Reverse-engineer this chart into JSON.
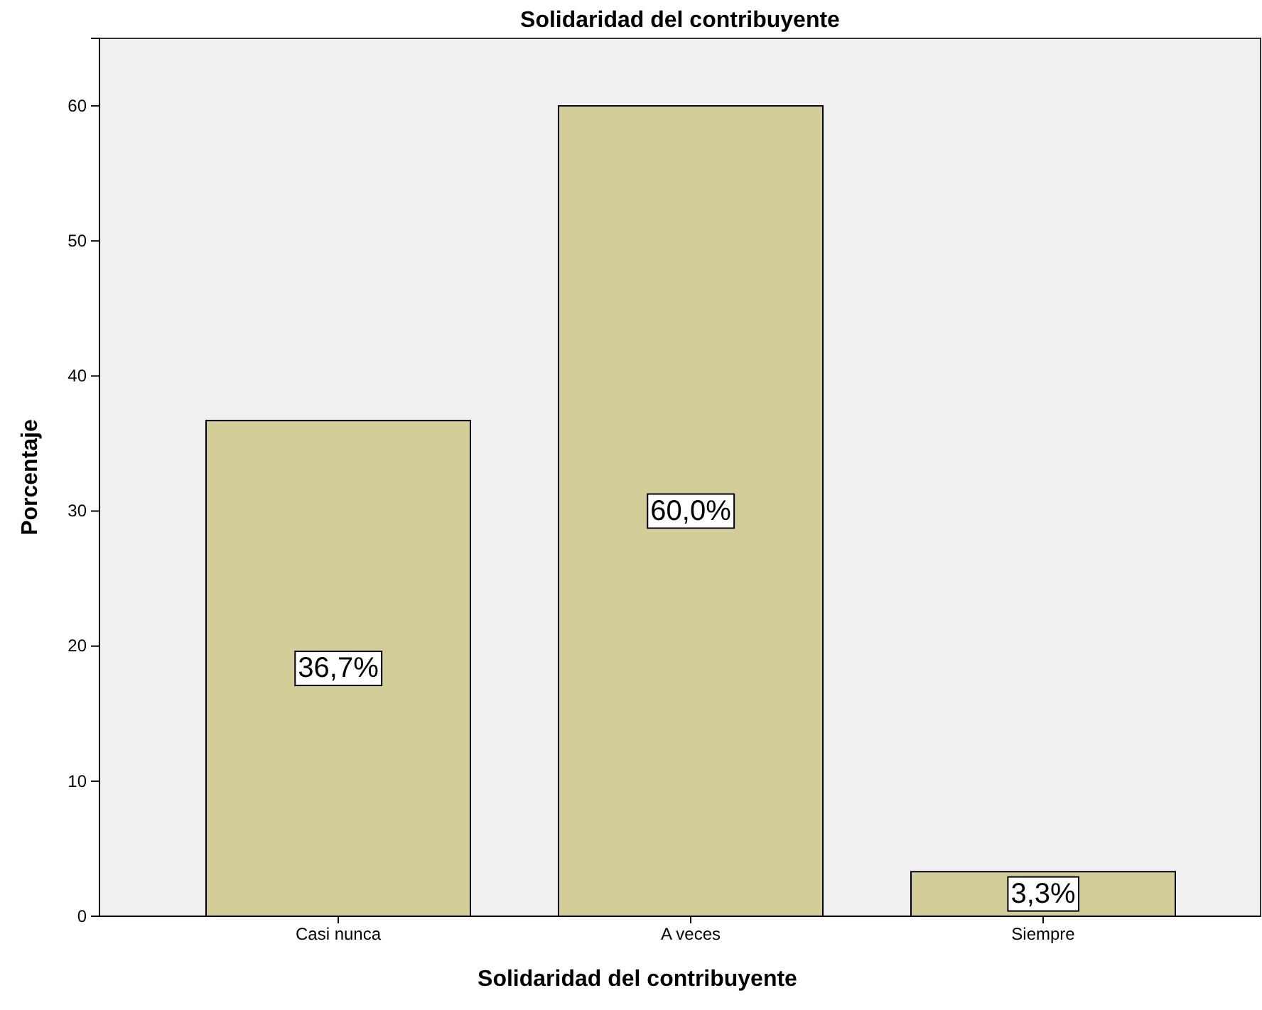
{
  "chart_data": {
    "type": "bar",
    "title": "Solidaridad del contribuyente",
    "xlabel": "Solidaridad del contribuyente",
    "ylabel": "Porcentaje",
    "categories": [
      "Casi nunca",
      "A veces",
      "Siempre"
    ],
    "values": [
      36.7,
      60.0,
      3.3
    ],
    "value_labels": [
      "36,7%",
      "60,0%",
      "3,3%"
    ],
    "color": "#d3ce98",
    "ylim": [
      0,
      65
    ],
    "yticks": [
      0,
      10,
      20,
      30,
      40,
      50,
      60
    ],
    "grid": false
  }
}
